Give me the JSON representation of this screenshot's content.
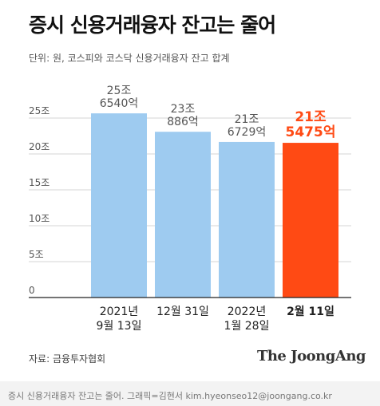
{
  "header": {
    "title": "증시 신용거래융자 잔고는 줄어",
    "unit_note": "단위: 원, 코스피와 코스닥 신용거래융자 잔고 합계"
  },
  "footer": {
    "source": "자료: 금융투자협회",
    "logo": "The JoongAng",
    "caption": "증시 신용거래융자 잔고는 줄어. 그래픽=김현서 kim.hyeonseo12@joongang.co.kr"
  },
  "colors": {
    "bar": "#9ecbf0",
    "highlight": "#ff4a14",
    "value_label": "#555555",
    "axis_text": "#555555",
    "grid": "#d6d6d6"
  },
  "chart_data": {
    "type": "bar",
    "title": "증시 신용거래융자 잔고는 줄어",
    "ylim": [
      0,
      25
    ],
    "yticks": [
      0,
      5,
      10,
      15,
      20,
      25
    ],
    "ytick_labels": [
      "0",
      "5조",
      "10조",
      "15조",
      "20조",
      "25조"
    ],
    "categories": [
      [
        "2021년",
        "9월 13일"
      ],
      [
        "12월 31일"
      ],
      [
        "2022년",
        "1월 28일"
      ],
      [
        "2월 11일"
      ]
    ],
    "values": [
      25.654,
      23.0886,
      21.6729,
      21.5475
    ],
    "value_labels": [
      [
        "25조",
        "6540억"
      ],
      [
        "23조",
        "886억"
      ],
      [
        "21조",
        "6729억"
      ],
      [
        "21조",
        "5475억"
      ]
    ],
    "highlight_index": 3
  }
}
